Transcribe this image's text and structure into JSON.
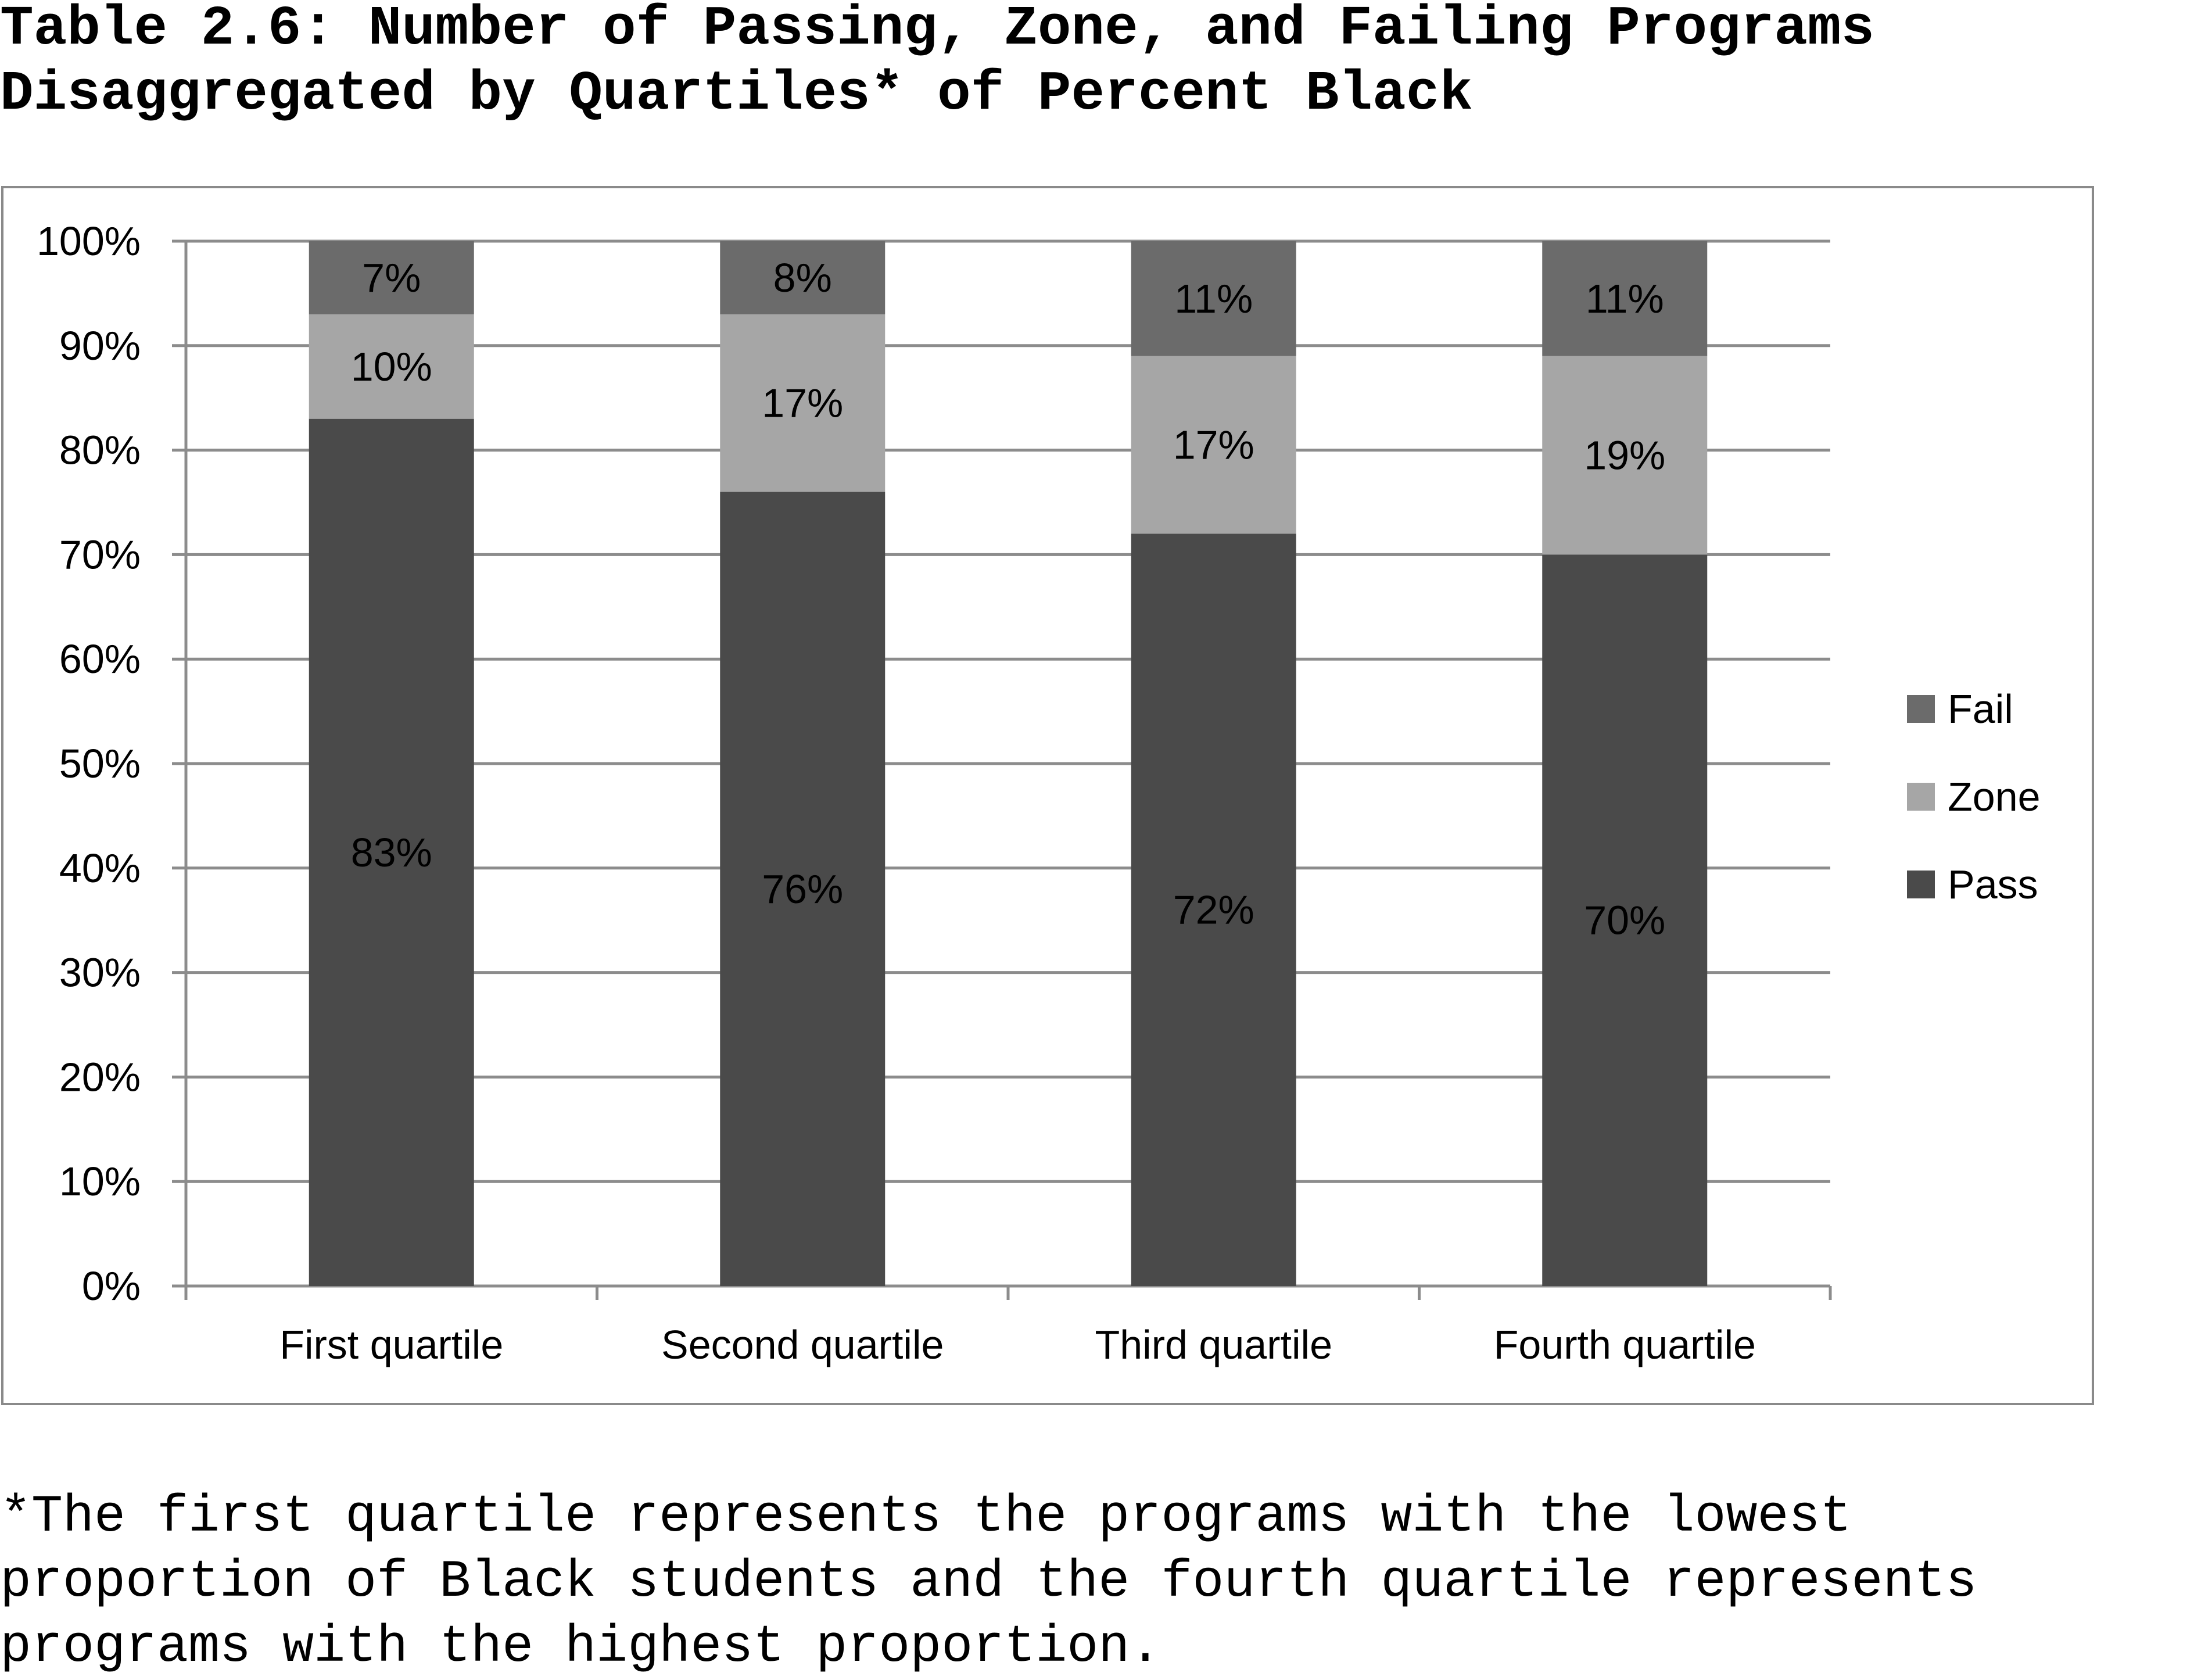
{
  "title_lines": [
    "Table 2.6: Number of Passing, Zone, and Failing Programs",
    "Disaggregated by Quartiles* of Percent Black"
  ],
  "footnote_lines": [
    "*The first quartile represents the programs with the lowest",
    "proportion of Black students and the fourth quartile represents",
    "programs with the highest proportion."
  ],
  "colors": {
    "fail": "#6b6b6b",
    "zone": "#a6a6a6",
    "pass": "#4a4a4a",
    "grid": "#8c8c8c",
    "frame": "#8a8a8a"
  },
  "chart_data": {
    "type": "bar",
    "stacked": true,
    "categories": [
      "First quartile",
      "Second quartile",
      "Third quartile",
      "Fourth quartile"
    ],
    "series": [
      {
        "name": "Pass",
        "values": [
          83,
          76,
          72,
          70
        ],
        "labels": [
          "83%",
          "76%",
          "72%",
          "70%"
        ]
      },
      {
        "name": "Zone",
        "values": [
          10,
          17,
          17,
          19
        ],
        "labels": [
          "10%",
          "17%",
          "17%",
          "19%"
        ]
      },
      {
        "name": "Fail",
        "values": [
          7,
          8,
          11,
          11
        ],
        "labels": [
          "7%",
          "8%",
          "11%",
          "11%"
        ]
      }
    ],
    "ylim": [
      0,
      100
    ],
    "yticks": [
      "0%",
      "10%",
      "20%",
      "30%",
      "40%",
      "50%",
      "60%",
      "70%",
      "80%",
      "90%",
      "100%"
    ],
    "grid": true,
    "legend": {
      "placement": "right",
      "order": [
        "Fail",
        "Zone",
        "Pass"
      ]
    }
  }
}
